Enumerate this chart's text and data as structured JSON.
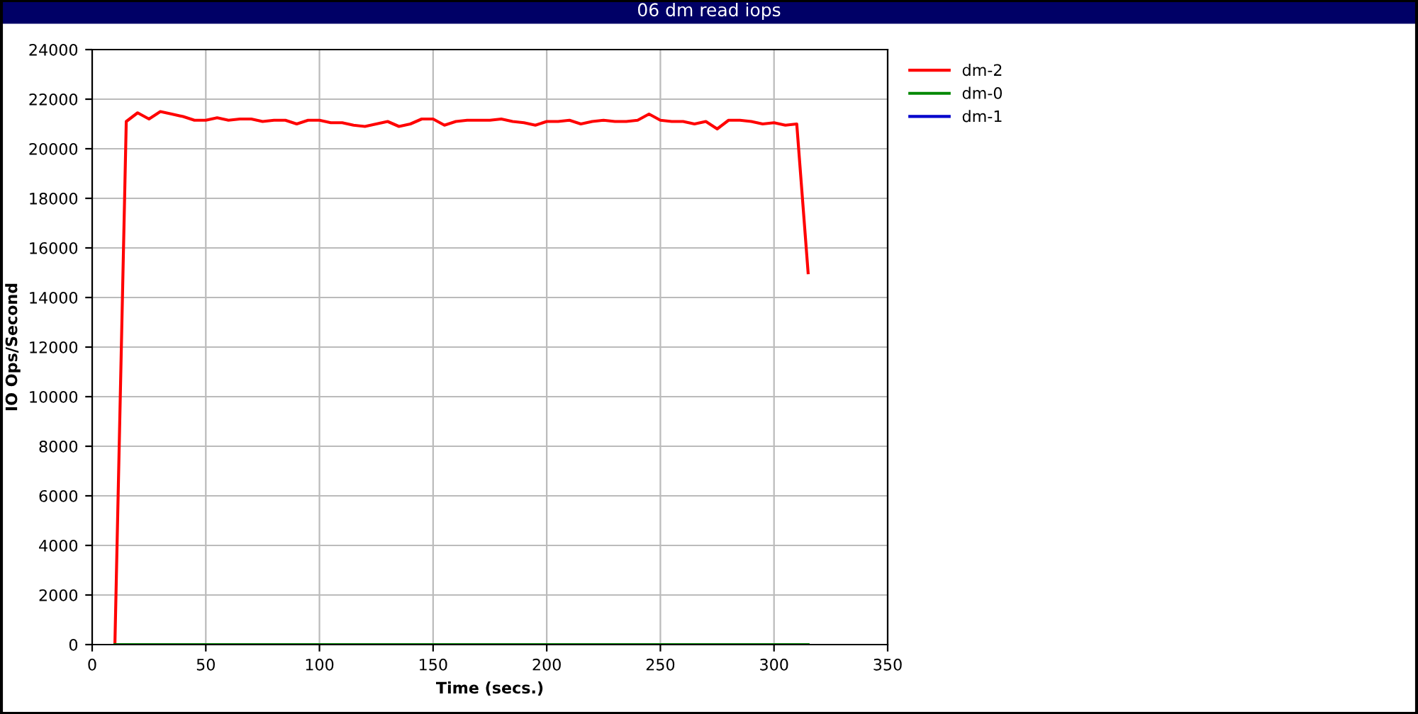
{
  "chart_data": {
    "type": "line",
    "title": "06 dm read iops",
    "xlabel": "Time (secs.)",
    "ylabel": "IO Ops/Second",
    "xlim": [
      0,
      350
    ],
    "xticks": [
      0,
      50,
      100,
      150,
      200,
      250,
      300,
      350
    ],
    "ylim": [
      0,
      24000
    ],
    "yticks": [
      0,
      2000,
      4000,
      6000,
      8000,
      10000,
      12000,
      14000,
      16000,
      18000,
      20000,
      22000,
      24000
    ],
    "grid": true,
    "legend": "top right",
    "marker": "none",
    "line_style": "solid",
    "series": [
      {
        "name": "dm-2",
        "color": "#ff0000",
        "x": [
          10,
          15,
          20,
          25,
          30,
          35,
          40,
          45,
          50,
          55,
          60,
          65,
          70,
          75,
          80,
          85,
          90,
          95,
          100,
          105,
          110,
          115,
          120,
          125,
          130,
          135,
          140,
          145,
          150,
          155,
          160,
          165,
          170,
          175,
          180,
          185,
          190,
          195,
          200,
          205,
          210,
          215,
          220,
          225,
          230,
          235,
          240,
          245,
          250,
          255,
          260,
          265,
          270,
          275,
          280,
          285,
          290,
          295,
          300,
          305,
          310,
          315
        ],
        "values": [
          0,
          21100,
          21450,
          21200,
          21500,
          21400,
          21300,
          21150,
          21150,
          21250,
          21150,
          21200,
          21200,
          21100,
          21150,
          21150,
          21000,
          21150,
          21150,
          21050,
          21050,
          20950,
          20900,
          21000,
          21100,
          20900,
          21000,
          21200,
          21200,
          20950,
          21100,
          21150,
          21150,
          21150,
          21200,
          21100,
          21050,
          20950,
          21100,
          21100,
          21150,
          21000,
          21100,
          21150,
          21100,
          21100,
          21150,
          21400,
          21150,
          21100,
          21100,
          21000,
          21100,
          20800,
          21150,
          21150,
          21100,
          21000,
          21050,
          20950,
          21000,
          15000
        ]
      },
      {
        "name": "dm-0",
        "color": "#008800",
        "x": [
          10,
          315
        ],
        "values": [
          0,
          0
        ]
      },
      {
        "name": "dm-1",
        "color": "#0000cc"
      }
    ]
  }
}
